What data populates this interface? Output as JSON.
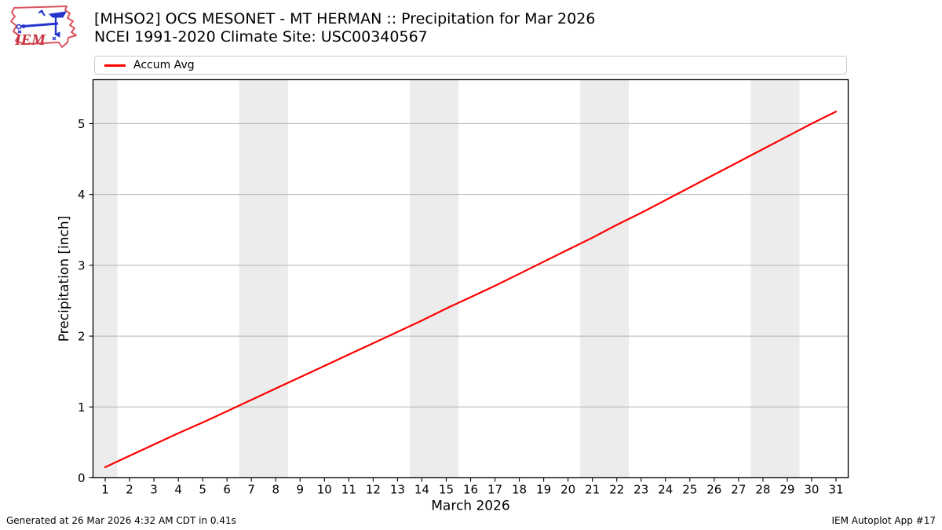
{
  "header": {
    "title_line1": "[MHSO2] OCS MESONET - MT HERMAN :: Precipitation for Mar 2026",
    "title_line2": "NCEI 1991-2020 Climate Site: USC00340567",
    "logo_text": "IEM"
  },
  "legend": {
    "items": [
      {
        "label": "Accum Avg",
        "color": "#ff0000"
      }
    ]
  },
  "footer": {
    "left": "Generated at 26 Mar 2026 4:32 AM CDT in 0.41s",
    "right": "IEM Autoplot App #17"
  },
  "chart_data": {
    "type": "line",
    "title": "[MHSO2] OCS MESONET - MT HERMAN :: Precipitation for Mar 2026",
    "subtitle": "NCEI 1991-2020 Climate Site: USC00340567",
    "xlabel": "March 2026",
    "ylabel": "Precipitation [inch]",
    "xlim": [
      0.5,
      31.5
    ],
    "ylim": [
      0,
      5.62
    ],
    "yticks": [
      0,
      1,
      2,
      3,
      4,
      5
    ],
    "grid": "horizontal",
    "grid_color": "#b3b3b3",
    "band_color": "#ececec",
    "spine_color": "#000000",
    "weekend_bands": [
      [
        0.5,
        1.5
      ],
      [
        6.5,
        8.5
      ],
      [
        13.5,
        15.5
      ],
      [
        20.5,
        22.5
      ],
      [
        27.5,
        29.5
      ]
    ],
    "days": [
      1,
      2,
      3,
      4,
      5,
      6,
      7,
      8,
      9,
      10,
      11,
      12,
      13,
      14,
      15,
      16,
      17,
      18,
      19,
      20,
      21,
      22,
      23,
      24,
      25,
      26,
      27,
      28,
      29,
      30,
      31
    ],
    "series": [
      {
        "name": "Accum Avg",
        "color": "#ff0000",
        "values": [
          0.15,
          0.31,
          0.47,
          0.63,
          0.78,
          0.94,
          1.1,
          1.26,
          1.42,
          1.58,
          1.74,
          1.9,
          2.06,
          2.22,
          2.39,
          2.55,
          2.71,
          2.88,
          3.05,
          3.22,
          3.39,
          3.57,
          3.74,
          3.92,
          4.1,
          4.28,
          4.46,
          4.64,
          4.82,
          5.0,
          5.17
        ]
      }
    ],
    "legend_position": "top"
  }
}
